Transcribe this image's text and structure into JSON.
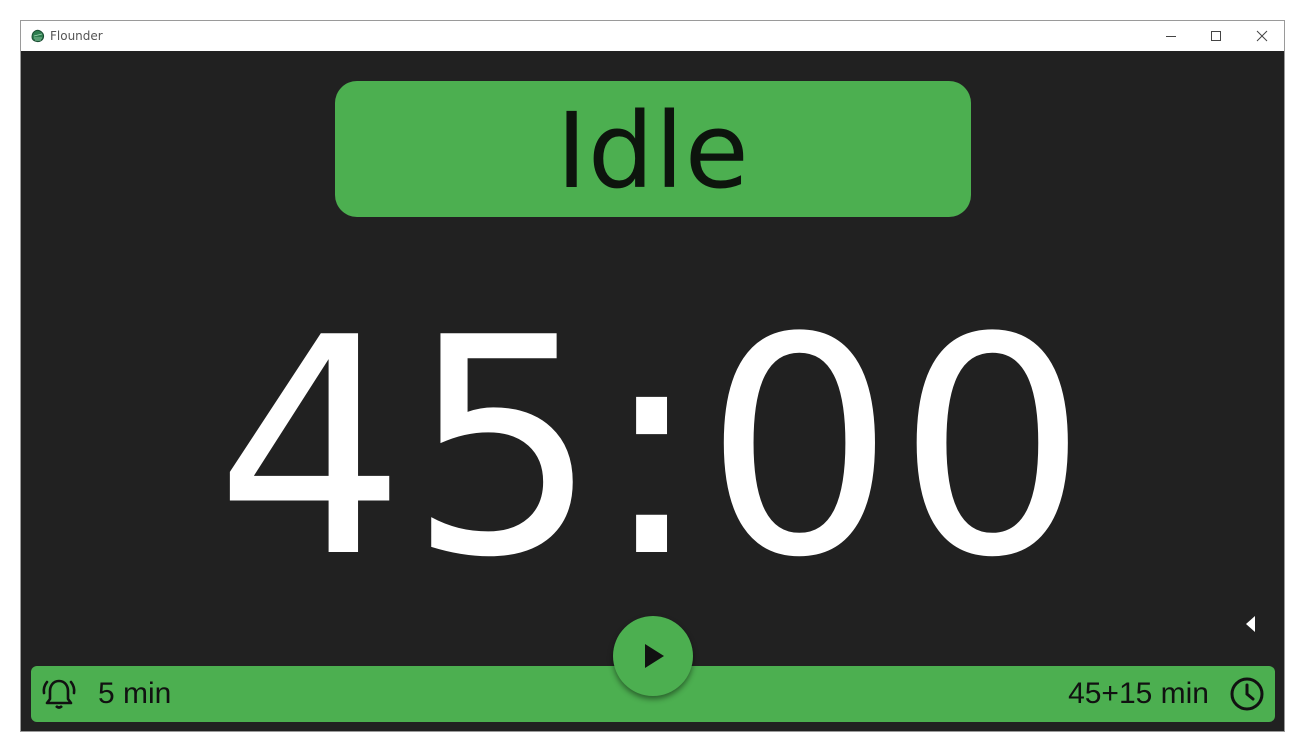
{
  "window": {
    "title": "Flounder"
  },
  "status": {
    "label": "Idle",
    "color": "#4caf50"
  },
  "timer": {
    "display": "45:00"
  },
  "bottom_bar": {
    "alarm_label": "5 min",
    "session_label": "45+15 min",
    "alarm_icon": "bell-icon",
    "clock_icon": "clock-icon"
  },
  "controls": {
    "play_icon": "play-icon",
    "collapse_icon": "caret-left-icon"
  },
  "colors": {
    "background": "#212121",
    "accent": "#4caf50",
    "text": "#ffffff"
  }
}
